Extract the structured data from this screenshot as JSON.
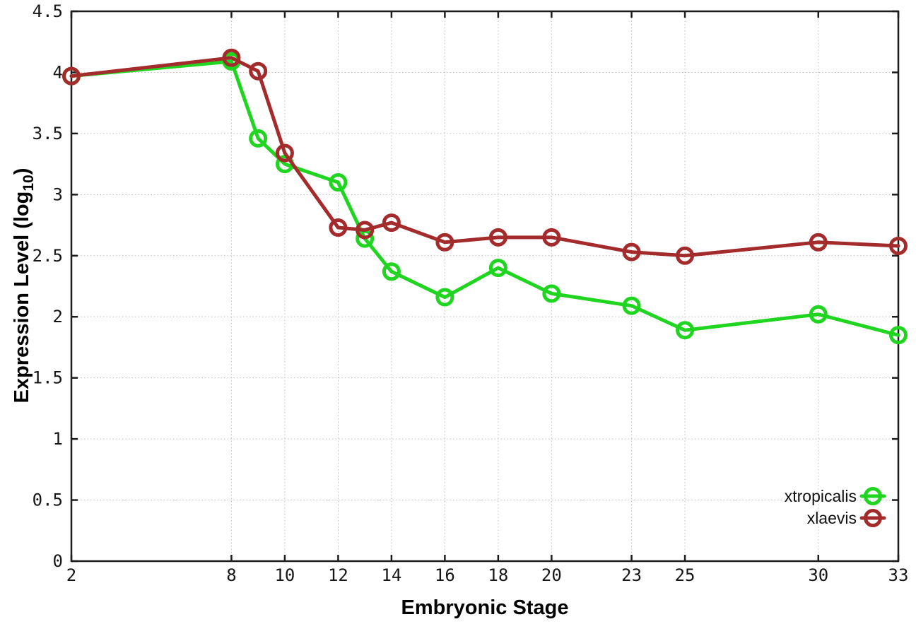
{
  "page": {
    "background": "#ffffff"
  },
  "chart_data": {
    "type": "line",
    "title": "",
    "xlabel": "Embryonic Stage",
    "ylabel": "Expression Level (log10)",
    "ylabel_parts": {
      "main": "Expression Level (log",
      "sub": "10",
      "end": ")"
    },
    "x": [
      2,
      8,
      9,
      10,
      12,
      13,
      14,
      16,
      18,
      20,
      23,
      25,
      30,
      33
    ],
    "series": [
      {
        "name": "xtropicalis",
        "color": "#1fd51f",
        "values": [
          3.97,
          4.09,
          3.46,
          3.25,
          3.1,
          2.64,
          2.37,
          2.16,
          2.4,
          2.19,
          2.09,
          1.89,
          2.02,
          1.85
        ]
      },
      {
        "name": "xlaevis",
        "color": "#a32b2b",
        "values": [
          3.97,
          4.12,
          4.01,
          3.34,
          2.73,
          2.71,
          2.77,
          2.61,
          2.65,
          2.65,
          2.53,
          2.5,
          2.61,
          2.58
        ]
      }
    ],
    "xticks": [
      2,
      8,
      10,
      12,
      14,
      16,
      18,
      20,
      23,
      25,
      30,
      33
    ],
    "xtick_labels": [
      "2",
      "8",
      "10",
      "12",
      "14",
      "16",
      "18",
      "20",
      "23",
      "25",
      "30",
      "33"
    ],
    "yticks": [
      0,
      0.5,
      1,
      1.5,
      2,
      2.5,
      3,
      3.5,
      4,
      4.5
    ],
    "ytick_labels": [
      "0",
      "0.5",
      "1",
      "1.5",
      "2",
      "2.5",
      "3",
      "3.5",
      "4",
      "4.5"
    ],
    "xlim": [
      2,
      33
    ],
    "ylim": [
      0,
      4.5
    ],
    "grid": "dotted",
    "legend_position": "inside-bottom-right",
    "marker": "open-circle",
    "colors": {
      "frame": "#1c1c1c",
      "grid": "#bfbfbf",
      "text": "#161616"
    }
  }
}
